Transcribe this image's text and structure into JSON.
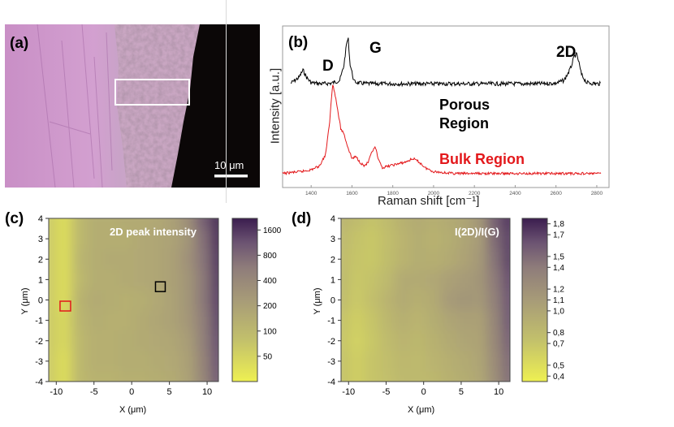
{
  "panels": {
    "a": {
      "label": "(a)",
      "scale_bar_label": "10 μm",
      "colors": {
        "optical": "#c79ac9",
        "dark": "#0b0707"
      }
    },
    "b": {
      "label": "(b)",
      "ylabel": "Intensity [a.u.]",
      "xlabel": "Raman shift [cm⁻¹]",
      "peak_D": "D",
      "peak_G": "G",
      "peak_2D": "2D",
      "porous_label_1": "Porous",
      "porous_label_2": "Region",
      "bulk_label": "Bulk Region",
      "colors": {
        "porous": "#000000",
        "bulk": "#e3181b"
      }
    },
    "c": {
      "label": "(c)",
      "title": "2D peak intensity",
      "xlabel": "X (μm)",
      "ylabel": "Y (μm)",
      "colorbar_ticks": [
        "1600",
        "800",
        "400",
        "200",
        "100",
        "50"
      ]
    },
    "d": {
      "label": "(d)",
      "title": "I(2D)/I(G)",
      "xlabel": "X (μm)",
      "ylabel": "Y (μm)",
      "colorbar_ticks": [
        "1,8",
        "1,7",
        "1,5",
        "1,4",
        "1,2",
        "1,1",
        "1,0",
        "0,8",
        "0,7",
        "0,5",
        "0,4"
      ]
    }
  },
  "chart_data": [
    {
      "type": "line",
      "title": "",
      "xlabel": "Raman shift [cm⁻¹]",
      "ylabel": "Intensity [a.u.]",
      "xlim": [
        1260,
        2860
      ],
      "x_ticks": [
        1400,
        1600,
        1800,
        2000,
        2200,
        2400,
        2600,
        2800
      ],
      "series": [
        {
          "name": "Porous Region",
          "color": "#000000",
          "x": [
            1300,
            1340,
            1360,
            1380,
            1400,
            1450,
            1500,
            1540,
            1560,
            1575,
            1582,
            1590,
            1610,
            1640,
            1700,
            1800,
            1900,
            2000,
            2100,
            2200,
            2300,
            2400,
            2500,
            2600,
            2640,
            2670,
            2690,
            2700,
            2710,
            2725,
            2750,
            2800,
            2820
          ],
          "y": [
            0.05,
            0.15,
            0.28,
            0.14,
            0.06,
            0.04,
            0.05,
            0.1,
            0.35,
            0.78,
            0.82,
            0.4,
            0.08,
            0.05,
            0.04,
            0.04,
            0.04,
            0.04,
            0.04,
            0.04,
            0.04,
            0.04,
            0.04,
            0.05,
            0.1,
            0.3,
            0.52,
            0.56,
            0.45,
            0.2,
            0.06,
            0.04,
            0.04
          ]
        },
        {
          "name": "Bulk Region",
          "color": "#e3181b",
          "x": [
            1260,
            1300,
            1350,
            1400,
            1440,
            1470,
            1490,
            1505,
            1515,
            1530,
            1545,
            1560,
            1580,
            1600,
            1620,
            1640,
            1660,
            1680,
            1700,
            1715,
            1730,
            1750,
            1780,
            1820,
            1860,
            1900,
            1930,
            1960,
            2000,
            2100,
            2200,
            2300,
            2400,
            2500,
            2600,
            2700,
            2800,
            2820
          ],
          "y": [
            0.02,
            0.03,
            0.04,
            0.06,
            0.1,
            0.22,
            0.55,
            0.98,
            0.9,
            0.7,
            0.5,
            0.45,
            0.3,
            0.18,
            0.2,
            0.14,
            0.1,
            0.14,
            0.26,
            0.3,
            0.16,
            0.08,
            0.1,
            0.12,
            0.14,
            0.18,
            0.14,
            0.08,
            0.04,
            0.02,
            0.02,
            0.02,
            0.02,
            0.02,
            0.02,
            0.02,
            0.02,
            0.02
          ]
        }
      ]
    },
    {
      "type": "heatmap",
      "title": "2D peak intensity",
      "xlabel": "X (μm)",
      "ylabel": "Y (μm)",
      "xlim": [
        -11,
        11.5
      ],
      "ylim": [
        -4,
        4
      ],
      "x_ticks": [
        -10,
        -5,
        0,
        5,
        10
      ],
      "y_ticks": [
        -4,
        -3,
        -2,
        -1,
        0,
        1,
        2,
        3,
        4
      ],
      "colorbar": {
        "scale": "log",
        "ticks": [
          50,
          100,
          200,
          400,
          800,
          1600
        ],
        "range": [
          25,
          2200
        ]
      },
      "x": [
        -11,
        -9,
        -7,
        -5,
        -3,
        -1,
        1,
        3,
        5,
        7,
        9,
        11.5
      ],
      "y": [
        4,
        3,
        2,
        1,
        0,
        -1,
        -2,
        -3,
        -4
      ],
      "z": [
        [
          60,
          40,
          100,
          140,
          140,
          150,
          150,
          160,
          200,
          340,
          900,
          1800
        ],
        [
          60,
          40,
          100,
          140,
          140,
          140,
          160,
          170,
          190,
          280,
          700,
          1700
        ],
        [
          60,
          40,
          110,
          140,
          150,
          150,
          160,
          170,
          200,
          300,
          650,
          1600
        ],
        [
          60,
          40,
          100,
          140,
          140,
          150,
          160,
          170,
          200,
          280,
          600,
          1500
        ],
        [
          60,
          40,
          120,
          150,
          140,
          130,
          140,
          160,
          190,
          270,
          600,
          1400
        ],
        [
          60,
          45,
          110,
          140,
          130,
          130,
          150,
          170,
          190,
          260,
          520,
          1300
        ],
        [
          60,
          45,
          100,
          130,
          130,
          140,
          150,
          160,
          170,
          220,
          500,
          1200
        ],
        [
          60,
          40,
          100,
          130,
          130,
          140,
          140,
          150,
          160,
          200,
          450,
          1100
        ],
        [
          60,
          40,
          100,
          120,
          120,
          130,
          130,
          140,
          150,
          190,
          420,
          1000
        ]
      ],
      "markers": [
        {
          "name": "red-square",
          "x": -8.8,
          "y": -0.3,
          "color": "#e3181b"
        },
        {
          "name": "black-square",
          "x": 3.8,
          "y": 0.65,
          "color": "#000000"
        }
      ]
    },
    {
      "type": "heatmap",
      "title": "I(2D)/I(G)",
      "xlabel": "X (μm)",
      "ylabel": "Y (μm)",
      "xlim": [
        -11,
        11.5
      ],
      "ylim": [
        -4,
        4
      ],
      "x_ticks": [
        -10,
        -5,
        0,
        5,
        10
      ],
      "y_ticks": [
        -4,
        -3,
        -2,
        -1,
        0,
        1,
        2,
        3,
        4
      ],
      "colorbar": {
        "scale": "linear",
        "ticks": [
          1.8,
          1.7,
          1.5,
          1.4,
          1.2,
          1.1,
          1.0,
          0.8,
          0.7,
          0.5,
          0.4
        ],
        "range": [
          0.35,
          1.85
        ]
      },
      "x": [
        -11,
        -9,
        -7,
        -5,
        -3,
        -1,
        1,
        3,
        5,
        7,
        9,
        11.5
      ],
      "y": [
        4,
        3,
        2,
        1,
        0,
        -1,
        -2,
        -3,
        -4
      ],
      "z": [
        [
          0.85,
          0.78,
          0.72,
          0.78,
          0.88,
          0.95,
          0.9,
          0.95,
          1.0,
          1.15,
          1.55,
          1.75
        ],
        [
          0.8,
          0.72,
          0.68,
          0.75,
          0.85,
          0.92,
          0.88,
          0.92,
          1.0,
          1.1,
          1.5,
          1.7
        ],
        [
          0.78,
          0.7,
          0.68,
          0.76,
          0.86,
          0.92,
          0.9,
          0.95,
          1.02,
          1.12,
          1.45,
          1.7
        ],
        [
          0.8,
          0.68,
          0.72,
          0.8,
          0.95,
          0.95,
          0.98,
          1.05,
          1.1,
          1.15,
          1.4,
          1.65
        ],
        [
          0.78,
          0.66,
          0.74,
          0.85,
          0.95,
          0.9,
          0.95,
          1.1,
          1.15,
          1.12,
          1.35,
          1.62
        ],
        [
          0.72,
          0.62,
          0.7,
          0.82,
          0.9,
          0.85,
          0.92,
          1.0,
          1.05,
          1.05,
          1.3,
          1.6
        ],
        [
          0.7,
          0.6,
          0.68,
          0.78,
          0.85,
          0.82,
          0.88,
          0.95,
          1.0,
          1.02,
          1.28,
          1.55
        ],
        [
          0.72,
          0.62,
          0.7,
          0.75,
          0.82,
          0.8,
          0.85,
          0.9,
          0.95,
          1.0,
          1.25,
          1.5
        ],
        [
          0.72,
          0.62,
          0.7,
          0.74,
          0.8,
          0.8,
          0.82,
          0.88,
          0.92,
          0.98,
          1.22,
          1.48
        ]
      ]
    }
  ]
}
